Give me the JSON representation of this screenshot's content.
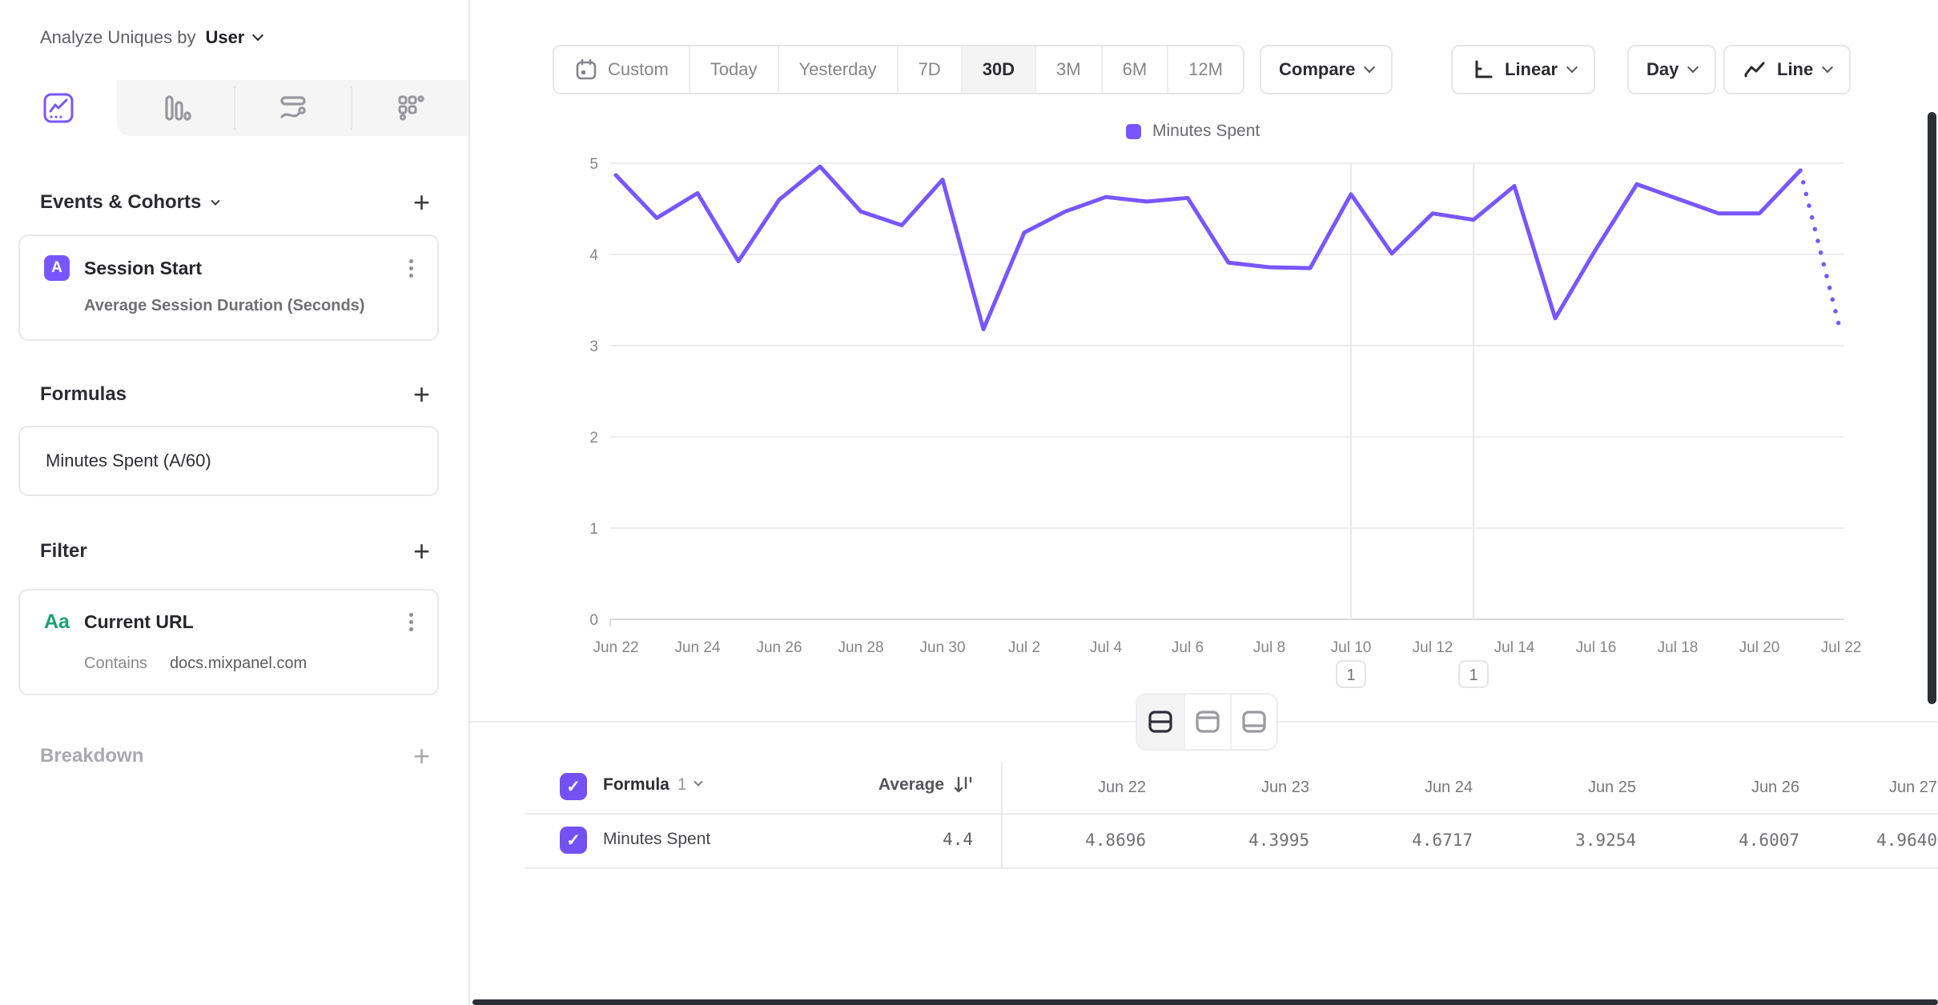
{
  "app": {
    "accent": "#7856FF",
    "grid_color": "#ececef",
    "axis_text_color": "#85858a"
  },
  "sidebar": {
    "analyze_label": "Analyze Uniques by",
    "analyze_value": "User",
    "tabs": [
      {
        "icon": "insights-line-chart-icon",
        "active": true
      },
      {
        "icon": "bar-chart-icon",
        "active": false
      },
      {
        "icon": "flows-icon",
        "active": false
      },
      {
        "icon": "metrics-icon",
        "active": false
      }
    ],
    "events_section": {
      "title": "Events & Cohorts",
      "add": "+"
    },
    "event_card": {
      "badge": "A",
      "title": "Session Start",
      "subtitle": "Average Session Duration (Seconds)"
    },
    "formulas_section": {
      "title": "Formulas",
      "add": "+"
    },
    "formula_card": {
      "text": "Minutes Spent (A/60)"
    },
    "filter_section": {
      "title": "Filter",
      "add": "+"
    },
    "filter_card": {
      "badge": "Aa",
      "title": "Current URL",
      "operator": "Contains",
      "value": "docs.mixpanel.com"
    },
    "breakdown_section": {
      "title": "Breakdown",
      "add": "+"
    }
  },
  "toolbar": {
    "date_ranges": [
      {
        "label": "Custom",
        "icon": "calendar-icon",
        "active": false
      },
      {
        "label": "Today",
        "active": false
      },
      {
        "label": "Yesterday",
        "active": false
      },
      {
        "label": "7D",
        "active": false
      },
      {
        "label": "30D",
        "active": true
      },
      {
        "label": "3M",
        "active": false
      },
      {
        "label": "6M",
        "active": false
      },
      {
        "label": "12M",
        "active": false
      }
    ],
    "compare": {
      "label": "Compare"
    },
    "scale": {
      "label": "Linear",
      "icon": "axis-icon"
    },
    "granularity": {
      "label": "Day"
    },
    "chart_type": {
      "label": "Line",
      "icon": "line-chart-icon"
    }
  },
  "chart_data": {
    "type": "line",
    "legend": [
      {
        "label": "Minutes Spent",
        "color": "#7856FF"
      }
    ],
    "x": [
      "Jun 22",
      "Jun 23",
      "Jun 24",
      "Jun 25",
      "Jun 26",
      "Jun 27",
      "Jun 28",
      "Jun 29",
      "Jun 30",
      "Jul 1",
      "Jul 2",
      "Jul 3",
      "Jul 4",
      "Jul 5",
      "Jul 6",
      "Jul 7",
      "Jul 8",
      "Jul 9",
      "Jul 10",
      "Jul 11",
      "Jul 12",
      "Jul 13",
      "Jul 14",
      "Jul 15",
      "Jul 16",
      "Jul 17",
      "Jul 18",
      "Jul 19",
      "Jul 20",
      "Jul 21",
      "Jul 22"
    ],
    "series": [
      {
        "name": "Minutes Spent",
        "values": [
          4.8696,
          4.3995,
          4.6717,
          3.9254,
          4.6007,
          4.964,
          4.47,
          4.32,
          4.82,
          3.18,
          4.24,
          4.47,
          4.63,
          4.58,
          4.62,
          3.91,
          3.86,
          3.85,
          4.66,
          4.01,
          4.45,
          4.38,
          4.75,
          3.3,
          4.06,
          4.77,
          4.61,
          4.45,
          4.45,
          4.92,
          3.13
        ]
      }
    ],
    "incomplete_from_index": 29,
    "ylim": [
      0,
      5
    ],
    "yticks": [
      0,
      1,
      2,
      3,
      4,
      5
    ],
    "xtick_every": 2,
    "annotations": [
      {
        "x_index": 18,
        "label": "1"
      },
      {
        "x_index": 21,
        "label": "1"
      }
    ],
    "grid": "horizontal"
  },
  "view_toggle": [
    {
      "icon": "split-view-icon",
      "active": true
    },
    {
      "icon": "chart-view-icon",
      "active": false
    },
    {
      "icon": "table-view-icon",
      "active": false
    }
  ],
  "table": {
    "series_group": {
      "label": "Formula",
      "index": "1"
    },
    "avg_header": "Average",
    "columns": [
      "Jun 22",
      "Jun 23",
      "Jun 24",
      "Jun 25",
      "Jun 26",
      "Jun 27"
    ],
    "row": {
      "label": "Minutes Spent",
      "average": "4.4",
      "values": [
        "4.8696",
        "4.3995",
        "4.6717",
        "3.9254",
        "4.6007",
        "4.9640"
      ]
    }
  }
}
